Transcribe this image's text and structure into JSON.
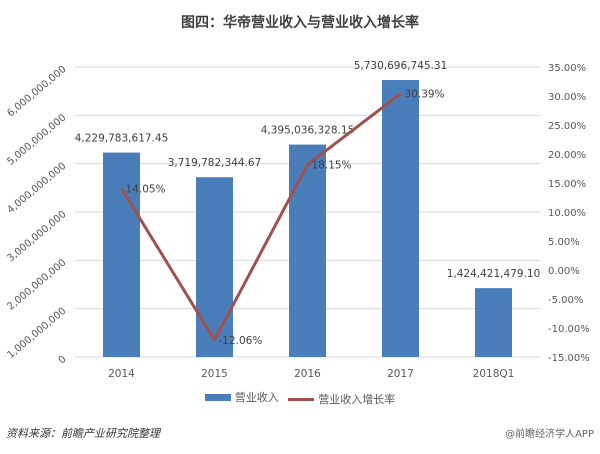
{
  "title": "图四：华帝营业收入与营业收入增长率",
  "legend": {
    "bar_label": "营业收入",
    "line_label": "营业收入增长率"
  },
  "footer": {
    "source": "资料来源：前瞻产业研究院整理",
    "watermark": "@前瞻经济学人APP"
  },
  "colors": {
    "bar": "#4a7ebb",
    "line": "#a0504d",
    "grid": "#d9d9d9"
  },
  "chart_data": {
    "type": "bar",
    "title": "图四：华帝营业收入与营业收入增长率",
    "categories": [
      "2014",
      "2015",
      "2016",
      "2017",
      "2018Q1"
    ],
    "series": [
      {
        "name": "营业收入",
        "type": "bar",
        "axis": "left",
        "values": [
          4229783617.45,
          3719782344.67,
          4395036328.15,
          5730696745.31,
          1424421479.1
        ],
        "labels": [
          "4,229,783,617.45",
          "3,719,782,344.67",
          "4,395,036,328.15",
          "5,730,696,745.31",
          "1,424,421,479.10"
        ]
      },
      {
        "name": "营业收入增长率",
        "type": "line",
        "axis": "right",
        "values": [
          14.05,
          -12.06,
          18.15,
          30.39,
          null
        ],
        "labels": [
          "14.05%",
          "-12.06%",
          "18.15%",
          "30.39%",
          ""
        ]
      }
    ],
    "left_axis": {
      "ylim": [
        0,
        6000000000
      ],
      "ticks": [
        "0",
        "1,000,000,000",
        "2,000,000,000",
        "3,000,000,000",
        "4,000,000,000",
        "5,000,000,000",
        "6,000,000,000"
      ]
    },
    "right_axis": {
      "ylim": [
        -15,
        35
      ],
      "ticks": [
        "-15.00%",
        "-10.00%",
        "-5.00%",
        "0.00%",
        "5.00%",
        "10.00%",
        "15.00%",
        "20.00%",
        "25.00%",
        "30.00%",
        "35.00%"
      ]
    },
    "xlabel": "",
    "ylabel": "",
    "grid": true,
    "legend_position": "bottom"
  }
}
